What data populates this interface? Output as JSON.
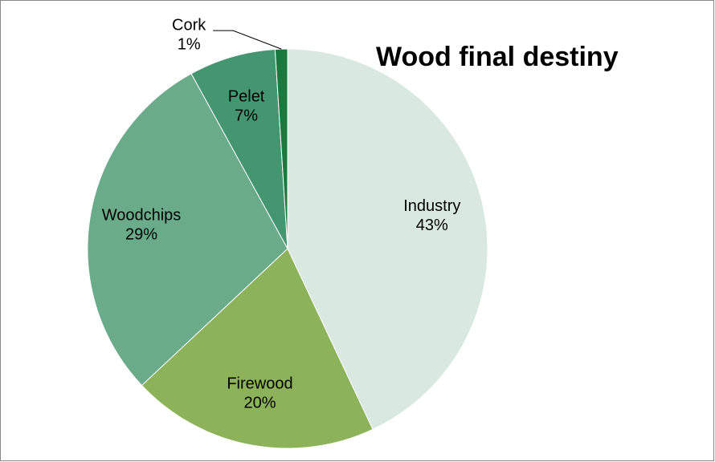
{
  "chart_data": {
    "type": "pie",
    "title": "Wood final destiny",
    "categories": [
      "Industry",
      "Firewood",
      "Woodchips",
      "Pelet",
      "Cork"
    ],
    "values": [
      43,
      20,
      29,
      7,
      1
    ],
    "value_labels": [
      "43%",
      "20%",
      "29%",
      "7%",
      "1%"
    ],
    "colors": [
      "#d9e9e1",
      "#8db35a",
      "#6aab8a",
      "#449670",
      "#1a7a3e"
    ]
  }
}
